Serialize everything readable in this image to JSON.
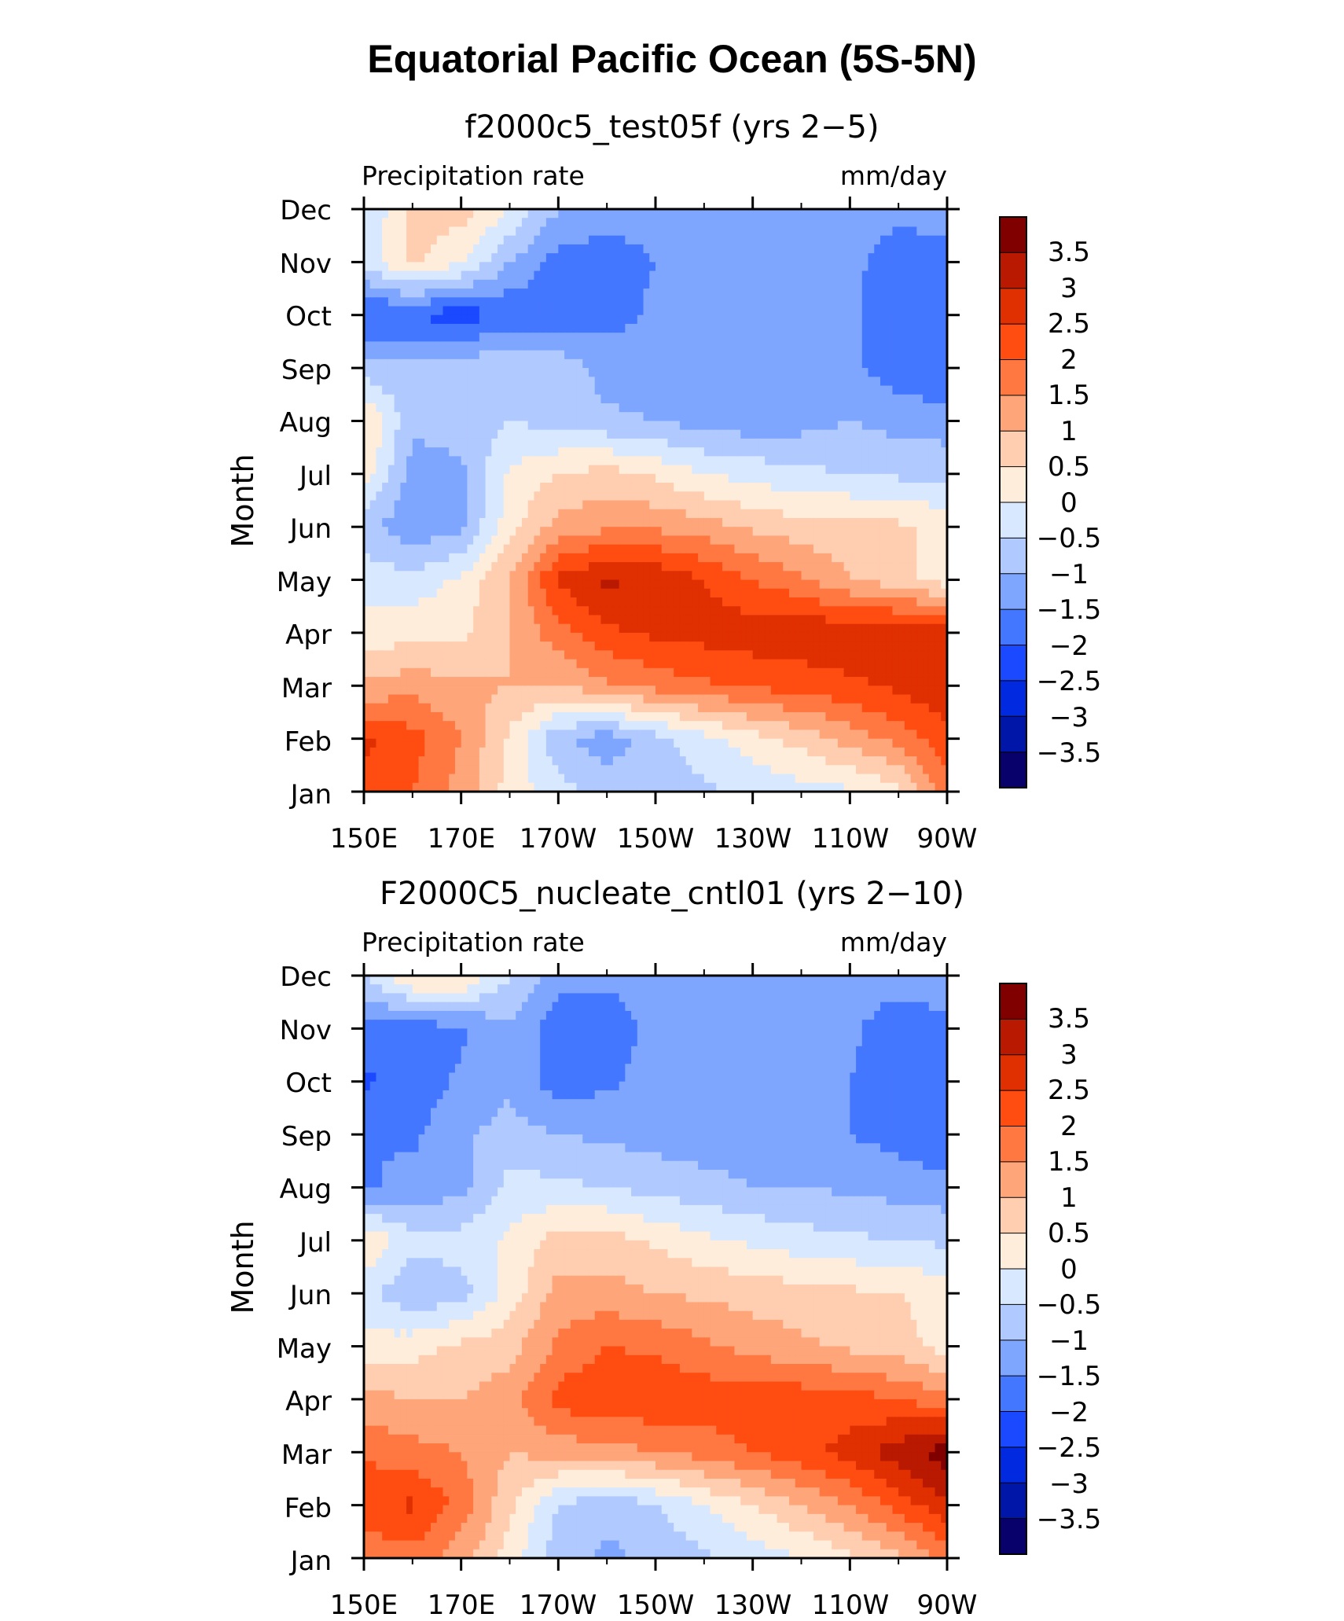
{
  "title": "Equatorial Pacific Ocean (5S-5N)",
  "colors": {
    "levels_palette": [
      "#08006b",
      "#0016a8",
      "#0029e0",
      "#1b49ff",
      "#4477ff",
      "#7fa6ff",
      "#b0c9ff",
      "#d8e8ff",
      "#ffeddc",
      "#ffcdb0",
      "#ffa57a",
      "#ff7842",
      "#ff4d12",
      "#e02f00",
      "#b81900",
      "#800000"
    ]
  },
  "chart_data": [
    {
      "type": "heatmap",
      "title": "f2000c5_test05f (yrs 2−5)",
      "left_label": "Precipitation rate",
      "right_label": "mm/day",
      "xlabel": "",
      "ylabel": "Month",
      "x_tick_labels": [
        "150E",
        "170E",
        "170W",
        "150W",
        "130W",
        "110W",
        "90W"
      ],
      "x_tick_values": [
        150,
        170,
        190,
        210,
        230,
        250,
        270
      ],
      "xlim": [
        150,
        270
      ],
      "y_tick_labels": [
        "Jan",
        "Feb",
        "Mar",
        "Apr",
        "May",
        "Jun",
        "Jul",
        "Aug",
        "Sep",
        "Oct",
        "Nov",
        "Dec"
      ],
      "ylim": [
        1,
        12
      ],
      "colorbar_labels": [
        "3.5",
        "3",
        "2.5",
        "2",
        "1.5",
        "1",
        "0.5",
        "0",
        "−0.5",
        "−1",
        "−1.5",
        "−2",
        "−2.5",
        "−3",
        "−3.5"
      ],
      "levels": [
        -3.5,
        -3,
        -2.5,
        -2,
        -1.5,
        -1,
        -0.5,
        0,
        0.5,
        1,
        1.5,
        2,
        2.5,
        3,
        3.5
      ],
      "x": [
        150,
        160,
        170,
        180,
        190,
        200,
        210,
        220,
        230,
        240,
        250,
        260,
        270
      ],
      "months": [
        1,
        2,
        3,
        4,
        5,
        6,
        7,
        8,
        9,
        10,
        11,
        12
      ],
      "z": [
        [
          2.3,
          2.0,
          1.3,
          0.3,
          -0.3,
          -0.7,
          -0.7,
          -0.6,
          -0.4,
          -0.2,
          -0.1,
          0.3,
          1.8
        ],
        [
          2.6,
          2.2,
          1.5,
          0.4,
          -0.9,
          -1.3,
          -0.7,
          -0.2,
          0.3,
          0.7,
          1.2,
          1.7,
          2.3
        ],
        [
          1.1,
          1.3,
          1.1,
          1.0,
          1.0,
          1.4,
          1.7,
          1.9,
          2.1,
          2.2,
          2.4,
          2.6,
          3.0
        ],
        [
          0.2,
          0.3,
          0.4,
          1.0,
          1.8,
          2.4,
          2.6,
          2.7,
          2.8,
          2.9,
          2.9,
          2.9,
          2.8
        ],
        [
          -0.2,
          -0.3,
          0.1,
          1.0,
          2.6,
          3.1,
          2.9,
          2.5,
          2.0,
          1.6,
          1.0,
          0.7,
          0.2
        ],
        [
          -0.8,
          -1.4,
          -1.1,
          0.3,
          1.2,
          1.4,
          1.4,
          1.2,
          0.9,
          0.7,
          0.7,
          0.6,
          0.3
        ],
        [
          0.3,
          -1.2,
          -1.1,
          0.1,
          0.5,
          0.7,
          0.4,
          0.0,
          -0.2,
          -0.4,
          -0.5,
          -0.6,
          -0.6
        ],
        [
          0.6,
          -0.9,
          -0.8,
          -0.5,
          -0.7,
          -0.9,
          -1.0,
          -1.2,
          -1.3,
          -1.2,
          -1.0,
          -1.2,
          -1.3
        ],
        [
          -0.8,
          -0.9,
          -0.7,
          -0.5,
          -0.7,
          -1.2,
          -1.4,
          -1.5,
          -1.5,
          -1.4,
          -1.4,
          -1.8,
          -1.9
        ],
        [
          -2.1,
          -2.0,
          -2.3,
          -1.9,
          -1.8,
          -1.7,
          -1.4,
          -1.3,
          -1.3,
          -1.3,
          -1.4,
          -1.8,
          -2.0
        ],
        [
          -0.3,
          0.6,
          0.1,
          -1.0,
          -1.7,
          -1.8,
          -1.5,
          -1.3,
          -1.3,
          -1.3,
          -1.4,
          -1.7,
          -1.7
        ],
        [
          -0.6,
          0.7,
          0.7,
          0.0,
          -1.0,
          -1.2,
          -1.3,
          -1.3,
          -1.3,
          -1.3,
          -1.3,
          -1.4,
          -1.3
        ]
      ]
    },
    {
      "type": "heatmap",
      "title": "F2000C5_nucleate_cntl01 (yrs 2−10)",
      "left_label": "Precipitation rate",
      "right_label": "mm/day",
      "xlabel": "",
      "ylabel": "Month",
      "x_tick_labels": [
        "150E",
        "170E",
        "170W",
        "150W",
        "130W",
        "110W",
        "90W"
      ],
      "x_tick_values": [
        150,
        170,
        190,
        210,
        230,
        250,
        270
      ],
      "xlim": [
        150,
        270
      ],
      "y_tick_labels": [
        "Jan",
        "Feb",
        "Mar",
        "Apr",
        "May",
        "Jun",
        "Jul",
        "Aug",
        "Sep",
        "Oct",
        "Nov",
        "Dec"
      ],
      "ylim": [
        1,
        12
      ],
      "colorbar_labels": [
        "3.5",
        "3",
        "2.5",
        "2",
        "1.5",
        "1",
        "0.5",
        "0",
        "−0.5",
        "−1",
        "−1.5",
        "−2",
        "−2.5",
        "−3",
        "−3.5"
      ],
      "levels": [
        -3.5,
        -3,
        -2.5,
        -2,
        -1.5,
        -1,
        -0.5,
        0,
        0.5,
        1,
        1.5,
        2,
        2.5,
        3,
        3.5
      ],
      "x": [
        150,
        160,
        170,
        180,
        190,
        200,
        210,
        220,
        230,
        240,
        250,
        260,
        270
      ],
      "months": [
        1,
        2,
        3,
        4,
        5,
        6,
        7,
        8,
        9,
        10,
        11,
        12
      ],
      "z": [
        [
          1.6,
          1.8,
          1.2,
          0.3,
          -0.8,
          -1.1,
          -0.9,
          -0.6,
          -0.3,
          0.0,
          0.4,
          0.9,
          1.7
        ],
        [
          2.4,
          2.6,
          1.8,
          0.6,
          -0.5,
          -0.9,
          -0.5,
          0.0,
          0.5,
          1.0,
          1.5,
          2.2,
          2.9
        ],
        [
          1.9,
          1.7,
          1.5,
          1.0,
          1.2,
          1.3,
          1.5,
          1.7,
          2.0,
          2.3,
          2.7,
          3.3,
          3.8
        ],
        [
          1.2,
          1.0,
          1.0,
          1.3,
          2.2,
          2.4,
          2.4,
          2.3,
          2.4,
          2.3,
          2.2,
          2.0,
          1.6
        ],
        [
          0.1,
          0.3,
          0.6,
          0.8,
          1.6,
          2.0,
          1.9,
          1.6,
          1.3,
          1.1,
          0.9,
          0.7,
          0.3
        ],
        [
          -0.3,
          -0.9,
          -0.7,
          0.2,
          1.2,
          1.2,
          1.0,
          0.9,
          0.8,
          0.7,
          0.6,
          0.5,
          0.3
        ],
        [
          0.5,
          -0.3,
          -0.3,
          0.1,
          0.7,
          0.7,
          0.4,
          0.1,
          -0.1,
          -0.3,
          -0.4,
          -0.5,
          -0.6
        ],
        [
          -1.6,
          -1.3,
          -1.2,
          -0.3,
          -0.4,
          -0.5,
          -0.7,
          -0.8,
          -1.0,
          -1.0,
          -1.1,
          -1.2,
          -1.3
        ],
        [
          -1.5,
          -1.6,
          -1.1,
          -0.8,
          -1.0,
          -1.1,
          -1.2,
          -1.3,
          -1.3,
          -1.4,
          -1.5,
          -1.7,
          -2.0
        ],
        [
          -2.1,
          -1.8,
          -1.4,
          -1.1,
          -1.8,
          -1.6,
          -1.3,
          -1.3,
          -1.3,
          -1.3,
          -1.5,
          -1.7,
          -1.8
        ],
        [
          -1.7,
          -1.8,
          -1.6,
          -1.1,
          -1.8,
          -1.7,
          -1.4,
          -1.3,
          -1.3,
          -1.3,
          -1.4,
          -1.8,
          -1.6
        ],
        [
          -0.5,
          0.6,
          0.6,
          -0.5,
          -1.3,
          -1.4,
          -1.4,
          -1.3,
          -1.2,
          -1.2,
          -1.2,
          -1.3,
          -1.2
        ]
      ]
    }
  ]
}
